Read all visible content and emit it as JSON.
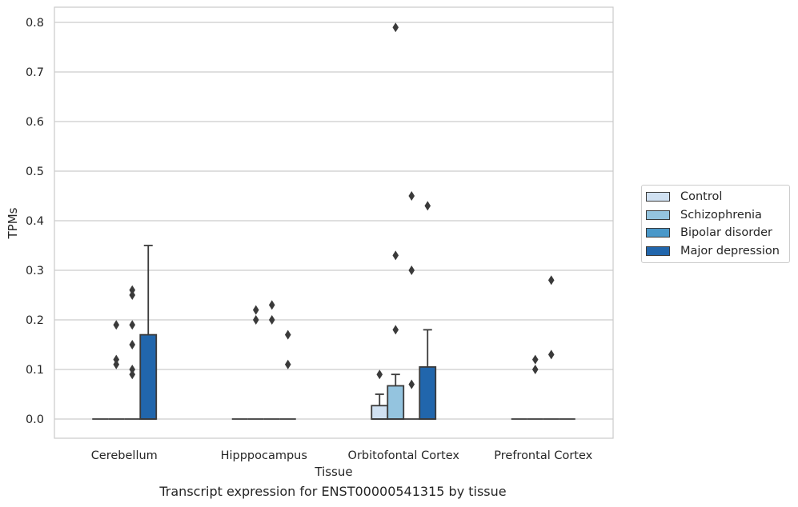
{
  "chart_data": {
    "type": "box",
    "title": "",
    "caption": "Transcript expression for ENST00000541315 by tissue",
    "xlabel": "Tissue",
    "ylabel": "TPMs",
    "ylim": [
      -0.04,
      0.83
    ],
    "yticks": [
      "0.0",
      "0.1",
      "0.2",
      "0.3",
      "0.4",
      "0.5",
      "0.6",
      "0.7",
      "0.8"
    ],
    "categories": [
      "Cerebellum",
      "Hipppocampus",
      "Orbitofontal Cortex",
      "Prefrontal Cortex"
    ],
    "grid": "horizontal",
    "legend_position": "right",
    "series": [
      {
        "name": "Control",
        "color": "#d0e1f2",
        "boxes": [
          {
            "q1": 0,
            "median": 0,
            "q3": 0,
            "whisker_high": 0,
            "outliers": []
          },
          {
            "q1": 0,
            "median": 0,
            "q3": 0,
            "whisker_high": 0,
            "outliers": []
          },
          {
            "q1": 0,
            "median": 0,
            "q3": 0.027,
            "whisker_high": 0.05,
            "outliers": [
              0.09
            ]
          },
          {
            "q1": 0,
            "median": 0,
            "q3": 0,
            "whisker_high": 0,
            "outliers": []
          }
        ]
      },
      {
        "name": "Schizophrenia",
        "color": "#94c4df",
        "boxes": [
          {
            "q1": 0,
            "median": 0,
            "q3": 0,
            "whisker_high": 0,
            "outliers": [
              0.12,
              0.11,
              0.19
            ]
          },
          {
            "q1": 0,
            "median": 0,
            "q3": 0,
            "whisker_high": 0,
            "outliers": [
              0.22,
              0.2
            ]
          },
          {
            "q1": 0,
            "median": 0,
            "q3": 0.067,
            "whisker_high": 0.09,
            "outliers": [
              0.79,
              0.33,
              0.18
            ]
          },
          {
            "q1": 0,
            "median": 0,
            "q3": 0,
            "whisker_high": 0,
            "outliers": [
              0.12,
              0.1
            ]
          }
        ]
      },
      {
        "name": "Bipolar disorder",
        "color": "#4a98c9",
        "boxes": [
          {
            "q1": 0,
            "median": 0,
            "q3": 0,
            "whisker_high": 0,
            "outliers": [
              0.26,
              0.25,
              0.15
            ]
          },
          {
            "q1": 0,
            "median": 0,
            "q3": 0,
            "whisker_high": 0,
            "outliers": [
              0.23,
              0.2
            ]
          },
          {
            "q1": 0,
            "median": 0,
            "q3": 0,
            "whisker_high": 0,
            "outliers": [
              0.45,
              0.3,
              0.07
            ]
          },
          {
            "q1": 0,
            "median": 0,
            "q3": 0,
            "whisker_high": 0,
            "outliers": [
              0.28,
              0.13
            ]
          }
        ]
      },
      {
        "name": "Major depression",
        "color": "#2166ac",
        "boxes": [
          {
            "q1": 0,
            "median": 0,
            "q3": 0.17,
            "whisker_high": 0.35,
            "outliers": []
          },
          {
            "q1": 0,
            "median": 0,
            "q3": 0,
            "whisker_high": 0,
            "outliers": [
              0.17,
              0.11
            ]
          },
          {
            "q1": 0,
            "median": 0,
            "q3": 0.105,
            "whisker_high": 0.18,
            "outliers": [
              0.43
            ]
          },
          {
            "q1": 0,
            "median": 0,
            "q3": 0,
            "whisker_high": 0,
            "outliers": []
          }
        ]
      }
    ],
    "extra_points": [
      {
        "category": 0,
        "series": 2,
        "values": [
          0.19,
          0.1,
          0.09
        ]
      }
    ]
  }
}
